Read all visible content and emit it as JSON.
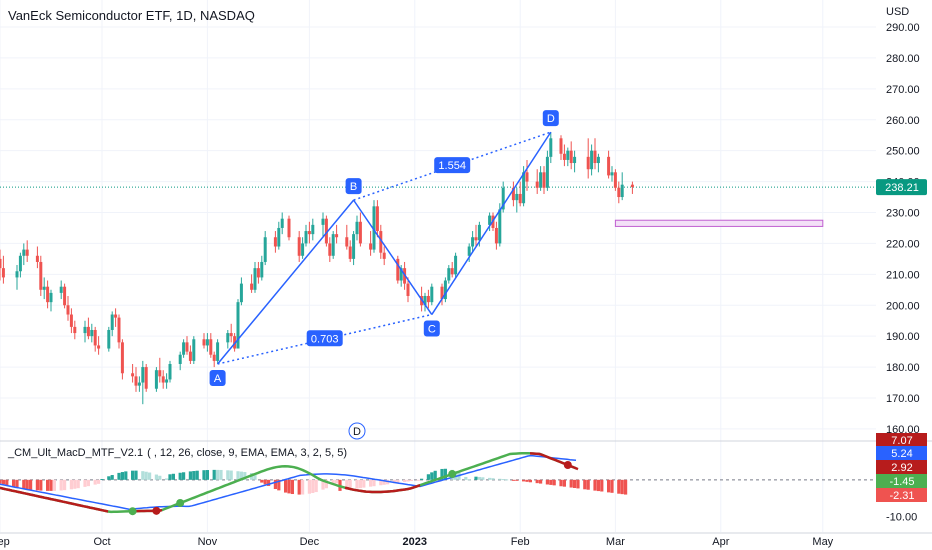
{
  "header": {
    "title": "VanEck Semiconductor ETF, 1D, NASDAQ",
    "currency": "USD"
  },
  "indicator": {
    "name": "_CM_Ult_MacD_MTF_V2.1",
    "params": "( , 12, 26, close, 9, EMA, EMA, 3, 2, 5, 5)"
  },
  "colors": {
    "up": "#26a69a",
    "down": "#ef5350",
    "pattern": "#2962ff",
    "last_price": "#089981",
    "zone_fill": "#f3e0f7",
    "zone_stroke": "#c05fd1",
    "macd_green": "#4caf50",
    "macd_red": "#b71c1c",
    "signal_blue": "#2962ff"
  },
  "chart_data": [
    {
      "type": "candlestick",
      "title": "VanEck Semiconductor ETF, 1D, NASDAQ",
      "ylabel": "USD",
      "ylim": [
        162,
        295
      ],
      "y_ticks": [
        "290.00",
        "280.00",
        "270.00",
        "260.00",
        "250.00",
        "240.00",
        "230.00",
        "220.00",
        "210.00",
        "200.00",
        "190.00",
        "180.00",
        "170.00",
        "160.00"
      ],
      "x_ticks": [
        "Sep",
        "Oct",
        "Nov",
        "Dec",
        "2023",
        "Feb",
        "Mar",
        "Apr",
        "May"
      ],
      "last_price": "238.21",
      "ohlc": [
        {
          "date": "2022-09-01",
          "o": 215,
          "h": 218,
          "l": 208,
          "c": 212
        },
        {
          "date": "2022-09-02",
          "o": 212,
          "h": 216,
          "l": 207,
          "c": 209
        },
        {
          "date": "2022-09-06",
          "o": 209,
          "h": 213,
          "l": 205,
          "c": 211
        },
        {
          "date": "2022-09-07",
          "o": 211,
          "h": 217,
          "l": 209,
          "c": 216
        },
        {
          "date": "2022-09-08",
          "o": 216,
          "h": 220,
          "l": 213,
          "c": 218
        },
        {
          "date": "2022-09-09",
          "o": 218,
          "h": 221,
          "l": 214,
          "c": 216
        },
        {
          "date": "2022-09-12",
          "o": 216,
          "h": 219,
          "l": 212,
          "c": 214
        },
        {
          "date": "2022-09-13",
          "o": 214,
          "h": 216,
          "l": 203,
          "c": 205
        },
        {
          "date": "2022-09-14",
          "o": 205,
          "h": 209,
          "l": 202,
          "c": 206
        },
        {
          "date": "2022-09-15",
          "o": 206,
          "h": 208,
          "l": 199,
          "c": 201
        },
        {
          "date": "2022-09-16",
          "o": 201,
          "h": 205,
          "l": 198,
          "c": 204
        },
        {
          "date": "2022-09-19",
          "o": 204,
          "h": 208,
          "l": 202,
          "c": 206
        },
        {
          "date": "2022-09-20",
          "o": 206,
          "h": 207,
          "l": 199,
          "c": 200
        },
        {
          "date": "2022-09-21",
          "o": 200,
          "h": 203,
          "l": 195,
          "c": 197
        },
        {
          "date": "2022-09-22",
          "o": 197,
          "h": 199,
          "l": 191,
          "c": 193
        },
        {
          "date": "2022-09-23",
          "o": 193,
          "h": 195,
          "l": 189,
          "c": 191
        },
        {
          "date": "2022-09-26",
          "o": 191,
          "h": 195,
          "l": 188,
          "c": 193
        },
        {
          "date": "2022-09-27",
          "o": 193,
          "h": 196,
          "l": 189,
          "c": 190
        },
        {
          "date": "2022-09-28",
          "o": 190,
          "h": 194,
          "l": 188,
          "c": 192
        },
        {
          "date": "2022-09-29",
          "o": 192,
          "h": 193,
          "l": 185,
          "c": 187
        },
        {
          "date": "2022-09-30",
          "o": 187,
          "h": 190,
          "l": 184,
          "c": 186
        },
        {
          "date": "2022-10-03",
          "o": 186,
          "h": 193,
          "l": 185,
          "c": 192
        },
        {
          "date": "2022-10-04",
          "o": 192,
          "h": 198,
          "l": 190,
          "c": 197
        },
        {
          "date": "2022-10-05",
          "o": 197,
          "h": 199,
          "l": 193,
          "c": 196
        },
        {
          "date": "2022-10-06",
          "o": 196,
          "h": 197,
          "l": 186,
          "c": 188
        },
        {
          "date": "2022-10-07",
          "o": 188,
          "h": 189,
          "l": 176,
          "c": 178
        },
        {
          "date": "2022-10-10",
          "o": 178,
          "h": 181,
          "l": 175,
          "c": 177
        },
        {
          "date": "2022-10-11",
          "o": 177,
          "h": 180,
          "l": 172,
          "c": 174
        },
        {
          "date": "2022-10-12",
          "o": 174,
          "h": 177,
          "l": 172,
          "c": 175
        },
        {
          "date": "2022-10-13",
          "o": 175,
          "h": 182,
          "l": 168,
          "c": 180
        },
        {
          "date": "2022-10-14",
          "o": 180,
          "h": 181,
          "l": 172,
          "c": 173
        },
        {
          "date": "2022-10-17",
          "o": 173,
          "h": 180,
          "l": 172,
          "c": 179
        },
        {
          "date": "2022-10-18",
          "o": 179,
          "h": 183,
          "l": 175,
          "c": 177
        },
        {
          "date": "2022-10-19",
          "o": 177,
          "h": 179,
          "l": 173,
          "c": 175
        },
        {
          "date": "2022-10-20",
          "o": 175,
          "h": 178,
          "l": 173,
          "c": 176
        },
        {
          "date": "2022-10-21",
          "o": 176,
          "h": 182,
          "l": 175,
          "c": 181
        },
        {
          "date": "2022-10-24",
          "o": 181,
          "h": 185,
          "l": 179,
          "c": 184
        },
        {
          "date": "2022-10-25",
          "o": 184,
          "h": 189,
          "l": 183,
          "c": 188
        },
        {
          "date": "2022-10-26",
          "o": 188,
          "h": 190,
          "l": 184,
          "c": 185
        },
        {
          "date": "2022-10-27",
          "o": 185,
          "h": 187,
          "l": 181,
          "c": 182
        },
        {
          "date": "2022-10-28",
          "o": 182,
          "h": 190,
          "l": 181,
          "c": 189
        },
        {
          "date": "2022-10-31",
          "o": 189,
          "h": 191,
          "l": 186,
          "c": 187
        },
        {
          "date": "2022-11-01",
          "o": 187,
          "h": 191,
          "l": 185,
          "c": 189
        },
        {
          "date": "2022-11-02",
          "o": 189,
          "h": 191,
          "l": 183,
          "c": 184
        },
        {
          "date": "2022-11-03",
          "o": 184,
          "h": 185,
          "l": 180,
          "c": 182
        },
        {
          "date": "2022-11-04",
          "o": 182,
          "h": 189,
          "l": 181,
          "c": 188
        },
        {
          "date": "2022-11-07",
          "o": 188,
          "h": 192,
          "l": 186,
          "c": 191
        },
        {
          "date": "2022-11-08",
          "o": 191,
          "h": 194,
          "l": 188,
          "c": 190
        },
        {
          "date": "2022-11-09",
          "o": 190,
          "h": 191,
          "l": 185,
          "c": 186
        },
        {
          "date": "2022-11-10",
          "o": 186,
          "h": 202,
          "l": 186,
          "c": 201
        },
        {
          "date": "2022-11-11",
          "o": 201,
          "h": 209,
          "l": 200,
          "c": 207
        },
        {
          "date": "2022-11-14",
          "o": 207,
          "h": 210,
          "l": 204,
          "c": 205
        },
        {
          "date": "2022-11-15",
          "o": 205,
          "h": 214,
          "l": 204,
          "c": 212
        },
        {
          "date": "2022-11-16",
          "o": 212,
          "h": 214,
          "l": 207,
          "c": 209
        },
        {
          "date": "2022-11-17",
          "o": 209,
          "h": 216,
          "l": 208,
          "c": 214
        },
        {
          "date": "2022-11-18",
          "o": 214,
          "h": 224,
          "l": 213,
          "c": 222
        },
        {
          "date": "2022-11-21",
          "o": 222,
          "h": 224,
          "l": 217,
          "c": 219
        },
        {
          "date": "2022-11-22",
          "o": 219,
          "h": 227,
          "l": 218,
          "c": 225
        },
        {
          "date": "2022-11-23",
          "o": 225,
          "h": 230,
          "l": 223,
          "c": 228
        },
        {
          "date": "2022-11-25",
          "o": 228,
          "h": 229,
          "l": 221,
          "c": 222
        },
        {
          "date": "2022-11-28",
          "o": 222,
          "h": 224,
          "l": 214,
          "c": 216
        },
        {
          "date": "2022-11-29",
          "o": 216,
          "h": 222,
          "l": 215,
          "c": 220
        },
        {
          "date": "2022-11-30",
          "o": 220,
          "h": 226,
          "l": 219,
          "c": 224
        },
        {
          "date": "2022-12-01",
          "o": 224,
          "h": 227,
          "l": 220,
          "c": 223
        },
        {
          "date": "2022-12-02",
          "o": 223,
          "h": 228,
          "l": 221,
          "c": 226
        },
        {
          "date": "2022-12-05",
          "o": 226,
          "h": 230,
          "l": 222,
          "c": 228
        },
        {
          "date": "2022-12-06",
          "o": 228,
          "h": 229,
          "l": 219,
          "c": 220
        },
        {
          "date": "2022-12-07",
          "o": 220,
          "h": 222,
          "l": 214,
          "c": 216
        },
        {
          "date": "2022-12-08",
          "o": 216,
          "h": 224,
          "l": 215,
          "c": 223
        },
        {
          "date": "2022-12-09",
          "o": 223,
          "h": 226,
          "l": 220,
          "c": 222
        },
        {
          "date": "2022-12-12",
          "o": 222,
          "h": 226,
          "l": 218,
          "c": 219
        },
        {
          "date": "2022-12-13",
          "o": 219,
          "h": 221,
          "l": 214,
          "c": 215
        },
        {
          "date": "2022-12-14",
          "o": 215,
          "h": 224,
          "l": 213,
          "c": 223
        },
        {
          "date": "2022-12-15",
          "o": 223,
          "h": 229,
          "l": 221,
          "c": 227
        },
        {
          "date": "2022-12-16",
          "o": 227,
          "h": 230,
          "l": 219,
          "c": 220
        },
        {
          "date": "2022-12-19",
          "o": 220,
          "h": 224,
          "l": 216,
          "c": 218
        },
        {
          "date": "2022-12-20",
          "o": 218,
          "h": 234,
          "l": 217,
          "c": 232
        },
        {
          "date": "2022-12-21",
          "o": 232,
          "h": 234,
          "l": 222,
          "c": 224
        },
        {
          "date": "2022-12-22",
          "o": 224,
          "h": 226,
          "l": 215,
          "c": 217
        },
        {
          "date": "2022-12-23",
          "o": 217,
          "h": 219,
          "l": 213,
          "c": 215
        },
        {
          "date": "2022-12-27",
          "o": 215,
          "h": 216,
          "l": 207,
          "c": 208
        },
        {
          "date": "2022-12-28",
          "o": 208,
          "h": 213,
          "l": 206,
          "c": 212
        },
        {
          "date": "2022-12-29",
          "o": 212,
          "h": 214,
          "l": 205,
          "c": 207
        },
        {
          "date": "2022-12-30",
          "o": 207,
          "h": 209,
          "l": 201,
          "c": 203
        },
        {
          "date": "2023-01-03",
          "o": 203,
          "h": 206,
          "l": 198,
          "c": 200
        },
        {
          "date": "2023-01-04",
          "o": 200,
          "h": 204,
          "l": 198,
          "c": 203
        },
        {
          "date": "2023-01-05",
          "o": 203,
          "h": 205,
          "l": 199,
          "c": 201
        },
        {
          "date": "2023-01-06",
          "o": 201,
          "h": 207,
          "l": 200,
          "c": 206
        },
        {
          "date": "2023-01-09",
          "o": 206,
          "h": 207,
          "l": 200,
          "c": 202
        },
        {
          "date": "2023-01-10",
          "o": 202,
          "h": 209,
          "l": 201,
          "c": 208
        },
        {
          "date": "2023-01-11",
          "o": 208,
          "h": 213,
          "l": 207,
          "c": 212
        },
        {
          "date": "2023-01-12",
          "o": 212,
          "h": 214,
          "l": 209,
          "c": 210
        },
        {
          "date": "2023-01-13",
          "o": 210,
          "h": 217,
          "l": 209,
          "c": 216
        },
        {
          "date": "2023-01-17",
          "o": 216,
          "h": 220,
          "l": 214,
          "c": 219
        },
        {
          "date": "2023-01-18",
          "o": 219,
          "h": 224,
          "l": 217,
          "c": 222
        },
        {
          "date": "2023-01-19",
          "o": 222,
          "h": 226,
          "l": 219,
          "c": 221
        },
        {
          "date": "2023-01-20",
          "o": 221,
          "h": 227,
          "l": 219,
          "c": 226
        },
        {
          "date": "2023-01-23",
          "o": 226,
          "h": 230,
          "l": 224,
          "c": 229
        },
        {
          "date": "2023-01-24",
          "o": 229,
          "h": 230,
          "l": 224,
          "c": 225
        },
        {
          "date": "2023-01-25",
          "o": 225,
          "h": 227,
          "l": 218,
          "c": 220
        },
        {
          "date": "2023-01-26",
          "o": 220,
          "h": 233,
          "l": 219,
          "c": 231
        },
        {
          "date": "2023-01-27",
          "o": 231,
          "h": 240,
          "l": 230,
          "c": 238
        },
        {
          "date": "2023-01-30",
          "o": 238,
          "h": 240,
          "l": 232,
          "c": 234
        },
        {
          "date": "2023-01-31",
          "o": 234,
          "h": 238,
          "l": 230,
          "c": 236
        },
        {
          "date": "2023-02-01",
          "o": 236,
          "h": 240,
          "l": 232,
          "c": 233
        },
        {
          "date": "2023-02-02",
          "o": 233,
          "h": 245,
          "l": 232,
          "c": 243
        },
        {
          "date": "2023-02-03",
          "o": 243,
          "h": 247,
          "l": 237,
          "c": 240
        },
        {
          "date": "2023-02-06",
          "o": 240,
          "h": 244,
          "l": 236,
          "c": 238
        },
        {
          "date": "2023-02-07",
          "o": 238,
          "h": 245,
          "l": 237,
          "c": 243
        },
        {
          "date": "2023-02-08",
          "o": 243,
          "h": 245,
          "l": 236,
          "c": 238
        },
        {
          "date": "2023-02-09",
          "o": 238,
          "h": 250,
          "l": 237,
          "c": 248
        },
        {
          "date": "2023-02-10",
          "o": 248,
          "h": 256,
          "l": 246,
          "c": 254
        },
        {
          "date": "2023-02-13",
          "o": 254,
          "h": 255,
          "l": 247,
          "c": 249
        },
        {
          "date": "2023-02-14",
          "o": 249,
          "h": 252,
          "l": 245,
          "c": 247
        },
        {
          "date": "2023-02-15",
          "o": 247,
          "h": 251,
          "l": 245,
          "c": 250
        },
        {
          "date": "2023-02-16",
          "o": 250,
          "h": 253,
          "l": 244,
          "c": 246
        },
        {
          "date": "2023-02-17",
          "o": 246,
          "h": 250,
          "l": 243,
          "c": 248
        },
        {
          "date": "2023-02-21",
          "o": 248,
          "h": 254,
          "l": 241,
          "c": 244
        },
        {
          "date": "2023-02-22",
          "o": 244,
          "h": 252,
          "l": 242,
          "c": 250
        },
        {
          "date": "2023-02-23",
          "o": 250,
          "h": 254,
          "l": 244,
          "c": 246
        },
        {
          "date": "2023-02-24",
          "o": 246,
          "h": 249,
          "l": 243,
          "c": 248
        },
        {
          "date": "2023-02-27",
          "o": 248,
          "h": 250,
          "l": 241,
          "c": 242
        },
        {
          "date": "2023-02-28",
          "o": 242,
          "h": 245,
          "l": 240,
          "c": 243
        },
        {
          "date": "2023-03-01",
          "o": 243,
          "h": 244,
          "l": 237,
          "c": 238
        },
        {
          "date": "2023-03-02",
          "o": 238,
          "h": 240,
          "l": 233,
          "c": 235
        },
        {
          "date": "2023-03-03",
          "o": 235,
          "h": 243,
          "l": 234,
          "c": 239
        },
        {
          "date": "2023-03-06",
          "o": 239,
          "h": 240,
          "l": 236,
          "c": 238.21
        }
      ],
      "pattern": {
        "points": [
          {
            "label": "A",
            "date": "2022-11-04",
            "price": 181
          },
          {
            "label": "B",
            "date": "2022-12-14",
            "price": 234
          },
          {
            "label": "C",
            "date": "2023-01-06",
            "price": 197
          },
          {
            "label": "D",
            "date": "2023-02-10",
            "price": 256
          }
        ],
        "ratios": [
          {
            "label": "0.703",
            "from": "A",
            "to": "C"
          },
          {
            "label": "1.554",
            "from": "B",
            "to": "D"
          }
        ]
      },
      "zone": {
        "from": "2023-03-01",
        "to": "2023-05-01",
        "low": 225.5,
        "high": 227.5
      },
      "event_marker": {
        "label": "D",
        "date": "2022-12-15"
      }
    },
    {
      "type": "macd",
      "ylim": [
        -11,
        10
      ],
      "y_ticks": [
        "-10.00"
      ],
      "value_labels": [
        {
          "label": "7.07",
          "color": "#b71c1c"
        },
        {
          "label": "5.24",
          "color": "#2962ff"
        },
        {
          "label": "2.92",
          "color": "#b71c1c"
        },
        {
          "label": "-1.45",
          "color": "#4caf50"
        },
        {
          "label": "-2.31",
          "color": "#ef5350"
        }
      ],
      "crossovers": [
        {
          "date": "2022-10-10",
          "type": "up"
        },
        {
          "date": "2022-10-17",
          "type": "down"
        },
        {
          "date": "2022-10-24",
          "type": "up"
        },
        {
          "date": "2023-01-12",
          "type": "up"
        },
        {
          "date": "2023-02-15",
          "type": "down"
        }
      ]
    }
  ]
}
